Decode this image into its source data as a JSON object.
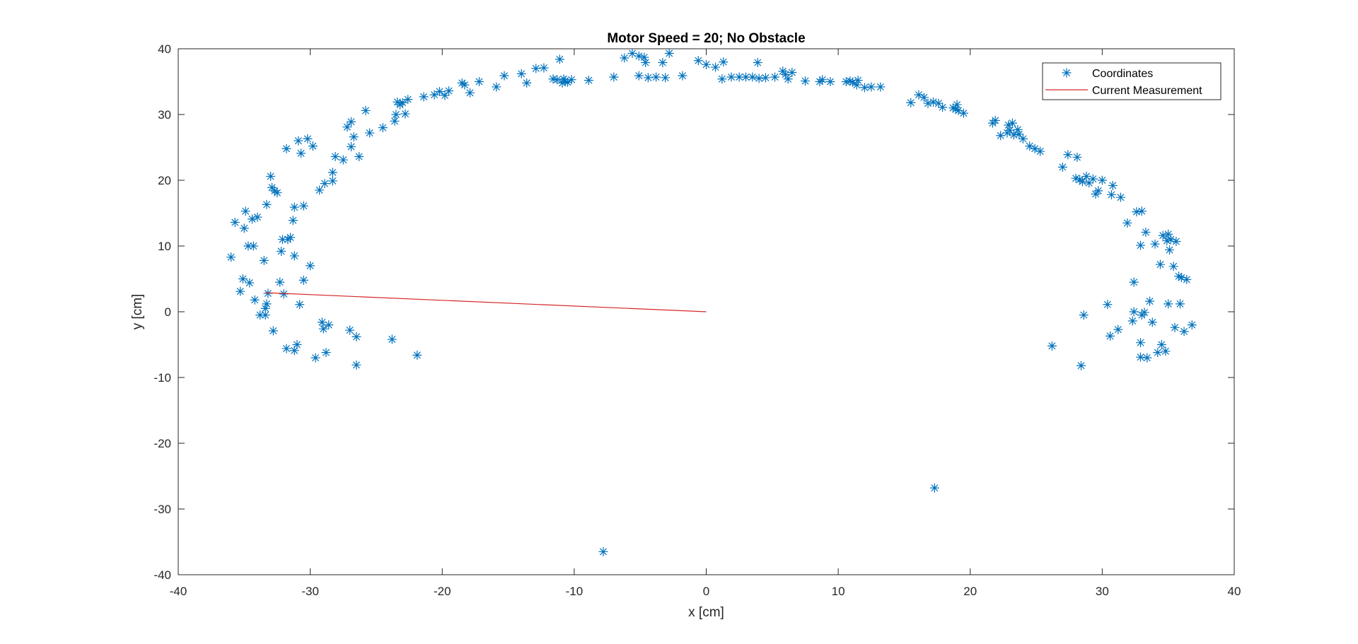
{
  "chart_data": {
    "type": "scatter",
    "title": "Motor Speed = 20; No Obstacle",
    "xlabel": "x [cm]",
    "ylabel": "y [cm]",
    "xlim": [
      -40,
      40
    ],
    "ylim": [
      -40,
      40
    ],
    "xticks": [
      -40,
      -30,
      -20,
      -10,
      0,
      10,
      20,
      30,
      40
    ],
    "yticks": [
      -40,
      -30,
      -20,
      -10,
      0,
      10,
      20,
      30,
      40
    ],
    "grid": false,
    "legend_position": "top-right",
    "colors": {
      "points": "#0072BD",
      "line": "#D62728",
      "axes": "#262626"
    },
    "series": [
      {
        "name": "Coordinates",
        "kind": "scatter",
        "marker": "asterisk",
        "points": [
          [
            -36,
            8.3
          ],
          [
            -35.7,
            13.6
          ],
          [
            -35.3,
            3.1
          ],
          [
            -35.1,
            5
          ],
          [
            -35,
            12.7
          ],
          [
            -34.9,
            15.3
          ],
          [
            -34.7,
            10
          ],
          [
            -34.6,
            4.4
          ],
          [
            -34.4,
            14.1
          ],
          [
            -34.3,
            10
          ],
          [
            -34.2,
            1.8
          ],
          [
            -34,
            14.4
          ],
          [
            -33.8,
            -0.5
          ],
          [
            -33.5,
            7.8
          ],
          [
            -33.4,
            -0.5
          ],
          [
            -33.4,
            0.5
          ],
          [
            -33.3,
            1.2
          ],
          [
            -33.3,
            16.3
          ],
          [
            -33.2,
            2.8
          ],
          [
            -33,
            20.6
          ],
          [
            -32.9,
            18.9
          ],
          [
            -32.8,
            -2.9
          ],
          [
            -32.7,
            18.4
          ],
          [
            -32.5,
            18.1
          ],
          [
            -32.3,
            4.5
          ],
          [
            -32.2,
            9.2
          ],
          [
            -32.1,
            11
          ],
          [
            -32,
            2.7
          ],
          [
            -31.8,
            24.8
          ],
          [
            -31.8,
            -5.6
          ],
          [
            -31.7,
            11
          ],
          [
            -31.5,
            11.3
          ],
          [
            -31.3,
            13.9
          ],
          [
            -31.2,
            -5.9
          ],
          [
            -31.2,
            15.9
          ],
          [
            -31.2,
            8.5
          ],
          [
            -31,
            -5
          ],
          [
            -30.9,
            26
          ],
          [
            -30.8,
            1.1
          ],
          [
            -30.7,
            24.1
          ],
          [
            -30.5,
            4.8
          ],
          [
            -30.5,
            16.1
          ],
          [
            -30.2,
            26.3
          ],
          [
            -30,
            7
          ],
          [
            -29.8,
            25.2
          ],
          [
            -29.6,
            -7
          ],
          [
            -29.3,
            18.5
          ],
          [
            -29.1,
            -1.6
          ],
          [
            -29,
            -2.6
          ],
          [
            -28.9,
            19.5
          ],
          [
            -28.8,
            -6.2
          ],
          [
            -28.6,
            -2
          ],
          [
            -28.3,
            19.9
          ],
          [
            -28.3,
            21.2
          ],
          [
            -28.1,
            23.6
          ],
          [
            -27.5,
            23.1
          ],
          [
            -27.2,
            28.1
          ],
          [
            -27,
            -2.8
          ],
          [
            -26.9,
            28.9
          ],
          [
            -26.9,
            25.1
          ],
          [
            -26.7,
            26.6
          ],
          [
            -26.5,
            -3.8
          ],
          [
            -26.5,
            -8.1
          ],
          [
            -26.3,
            23.6
          ],
          [
            -25.8,
            30.6
          ],
          [
            -25.5,
            27.2
          ],
          [
            -24.5,
            28
          ],
          [
            -23.8,
            -4.2
          ],
          [
            -23.6,
            29
          ],
          [
            -23.5,
            30
          ],
          [
            -23.4,
            31.9
          ],
          [
            -23.2,
            31.5
          ],
          [
            -23,
            31.8
          ],
          [
            -22.8,
            30.1
          ],
          [
            -22.6,
            32.3
          ],
          [
            -21.9,
            -6.6
          ],
          [
            -21.4,
            32.7
          ],
          [
            -20.6,
            33
          ],
          [
            -20.2,
            33.5
          ],
          [
            -19.8,
            32.9
          ],
          [
            -19.5,
            33.6
          ],
          [
            -18.5,
            34.8
          ],
          [
            -18.3,
            34.5
          ],
          [
            -17.9,
            33.3
          ],
          [
            -17.2,
            35
          ],
          [
            -15.9,
            34.2
          ],
          [
            -15.3,
            35.9
          ],
          [
            -14,
            36.2
          ],
          [
            -13.6,
            34.8
          ],
          [
            -12.9,
            37
          ],
          [
            -12.3,
            37.1
          ],
          [
            -11.6,
            35.4
          ],
          [
            -11.3,
            35.3
          ],
          [
            -11.1,
            38.4
          ],
          [
            -10.9,
            34.8
          ],
          [
            -10.8,
            35.4
          ],
          [
            -10.7,
            35.1
          ],
          [
            -10.5,
            34.9
          ],
          [
            -10.2,
            35.3
          ],
          [
            -8.9,
            35.2
          ],
          [
            -7.8,
            -36.5
          ],
          [
            -7,
            35.7
          ],
          [
            -6.2,
            38.6
          ],
          [
            -5.6,
            39.3
          ],
          [
            -5.1,
            38.9
          ],
          [
            -5.1,
            35.9
          ],
          [
            -4.7,
            38.7
          ],
          [
            -4.6,
            37.9
          ],
          [
            -4.4,
            35.6
          ],
          [
            -3.8,
            35.7
          ],
          [
            -3.3,
            37.9
          ],
          [
            -3.1,
            35.6
          ],
          [
            -2.8,
            39.3
          ],
          [
            -1.8,
            35.9
          ],
          [
            -0.6,
            38.2
          ],
          [
            0,
            37.6
          ],
          [
            0.7,
            37.2
          ],
          [
            1.2,
            35.4
          ],
          [
            1.3,
            38
          ],
          [
            1.9,
            35.7
          ],
          [
            2.5,
            35.7
          ],
          [
            3,
            35.7
          ],
          [
            3.5,
            35.7
          ],
          [
            3.9,
            37.9
          ],
          [
            4,
            35.5
          ],
          [
            4.5,
            35.6
          ],
          [
            5.2,
            35.7
          ],
          [
            5.8,
            36.6
          ],
          [
            6,
            36.1
          ],
          [
            6.2,
            35.4
          ],
          [
            6.5,
            36.4
          ],
          [
            7.5,
            35.1
          ],
          [
            8.6,
            35
          ],
          [
            8.8,
            35.3
          ],
          [
            9.4,
            35
          ],
          [
            10.6,
            35
          ],
          [
            10.9,
            35.1
          ],
          [
            11.1,
            34.9
          ],
          [
            11.4,
            34.5
          ],
          [
            11.5,
            35.2
          ],
          [
            12,
            34.1
          ],
          [
            12.5,
            34.2
          ],
          [
            13.2,
            34.2
          ],
          [
            15.5,
            31.8
          ],
          [
            16.1,
            33
          ],
          [
            16.5,
            32.6
          ],
          [
            16.8,
            31.7
          ],
          [
            17.2,
            31.9
          ],
          [
            17.6,
            31.7
          ],
          [
            17.9,
            31.1
          ],
          [
            18.7,
            31
          ],
          [
            18.9,
            30.8
          ],
          [
            19,
            31.5
          ],
          [
            19.1,
            30.6
          ],
          [
            19.5,
            30.2
          ],
          [
            17.3,
            -26.8
          ],
          [
            21.7,
            28.7
          ],
          [
            21.9,
            29.1
          ],
          [
            22.3,
            26.8
          ],
          [
            22.8,
            27.2
          ],
          [
            22.9,
            28.4
          ],
          [
            23,
            27.6
          ],
          [
            23.2,
            28.7
          ],
          [
            23.3,
            26.9
          ],
          [
            23.6,
            27.7
          ],
          [
            23.7,
            27
          ],
          [
            24,
            26.3
          ],
          [
            24.5,
            25.2
          ],
          [
            24.9,
            24.8
          ],
          [
            25.3,
            24.4
          ],
          [
            26.2,
            -5.2
          ],
          [
            27,
            22
          ],
          [
            27.4,
            23.9
          ],
          [
            28,
            20.3
          ],
          [
            28.1,
            23.5
          ],
          [
            28.3,
            20.1
          ],
          [
            28.4,
            -8.2
          ],
          [
            28.5,
            19.8
          ],
          [
            28.6,
            -0.5
          ],
          [
            28.8,
            20.6
          ],
          [
            29,
            19.6
          ],
          [
            29.3,
            20.2
          ],
          [
            29.5,
            17.9
          ],
          [
            29.7,
            18.4
          ],
          [
            30,
            20
          ],
          [
            30.4,
            1.1
          ],
          [
            30.6,
            -3.7
          ],
          [
            30.7,
            17.8
          ],
          [
            30.8,
            19.2
          ],
          [
            31.2,
            -2.7
          ],
          [
            31.4,
            17.4
          ],
          [
            31.9,
            13.5
          ],
          [
            32.3,
            -1.4
          ],
          [
            32.4,
            0
          ],
          [
            32.4,
            4.5
          ],
          [
            32.6,
            15.2
          ],
          [
            32.9,
            -4.7
          ],
          [
            32.9,
            -6.9
          ],
          [
            32.9,
            10.1
          ],
          [
            33,
            15.3
          ],
          [
            33,
            -0.5
          ],
          [
            33.2,
            -0.1
          ],
          [
            33.3,
            12.1
          ],
          [
            33.4,
            -7
          ],
          [
            33.6,
            1.6
          ],
          [
            33.8,
            -1.6
          ],
          [
            34,
            10.3
          ],
          [
            34.2,
            -6.2
          ],
          [
            34.4,
            7.2
          ],
          [
            34.5,
            -5
          ],
          [
            34.6,
            11.6
          ],
          [
            34.8,
            -6
          ],
          [
            34.9,
            10.8
          ],
          [
            35,
            1.2
          ],
          [
            35,
            11.8
          ],
          [
            35.1,
            9.4
          ],
          [
            35.2,
            11
          ],
          [
            35.4,
            6.9
          ],
          [
            35.5,
            -2.4
          ],
          [
            35.6,
            10.7
          ],
          [
            35.8,
            5.4
          ],
          [
            35.9,
            1.2
          ],
          [
            36,
            5.2
          ],
          [
            36.2,
            -3
          ],
          [
            36.4,
            4.9
          ],
          [
            36.8,
            -2
          ]
        ]
      },
      {
        "name": "Current Measurement",
        "kind": "line",
        "points": [
          [
            -33.4,
            2.9
          ],
          [
            0,
            0
          ]
        ]
      }
    ]
  }
}
